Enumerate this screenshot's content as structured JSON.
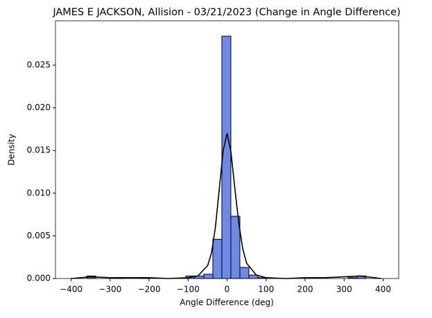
{
  "chart_data": {
    "type": "histogram",
    "title": "JAMES E JACKSON, Allision - 03/21/2023 (Change in Angle Difference)",
    "x_label": "Angle Difference (deg)",
    "y_label": "Density",
    "color": "#7088e6",
    "edge_color": "#000000",
    "bins": [
      -359.9,
      -336.8,
      -313.7,
      -290.6,
      -267.5,
      -244.4,
      -221.3,
      -198.2,
      -175.1,
      -152.0,
      -128.9,
      -105.8,
      -82.7,
      -59.6,
      -36.5,
      -13.4,
      9.7,
      32.8,
      55.9,
      79.0,
      102.1,
      125.2,
      148.3,
      171.4,
      194.5,
      217.6,
      240.7,
      263.8,
      286.9,
      310.0,
      333.1,
      356.2
    ],
    "values": [
      0.0003,
      0,
      0,
      0.0001,
      0,
      0,
      0.0001,
      0,
      0,
      0,
      0,
      0.0003,
      0.0003,
      0.0005,
      0.0046,
      0.0284,
      0.0073,
      0.0013,
      0.0004,
      0.0001,
      0,
      0,
      0,
      0,
      0,
      0,
      0,
      0,
      0,
      0.0001,
      0.0003
    ],
    "kde": {
      "color": "#000000",
      "x": [
        -400,
        -350,
        -300,
        -250,
        -200,
        -150,
        -100,
        -75,
        -50,
        -40,
        -30,
        -20,
        -10,
        0,
        10,
        20,
        30,
        40,
        50,
        75,
        100,
        150,
        200,
        250,
        300,
        340,
        395
      ],
      "y": [
        0,
        0.0002,
        0.0001,
        0.0001,
        0.0001,
        0,
        0.0001,
        0.0003,
        0.0015,
        0.003,
        0.006,
        0.0105,
        0.015,
        0.017,
        0.0148,
        0.0105,
        0.0065,
        0.0035,
        0.0018,
        0.0004,
        0.0001,
        0,
        0.0001,
        0.0001,
        0.0002,
        0.0003,
        0
      ]
    },
    "xlim": [
      -440,
      440
    ],
    "ylim": [
      0,
      0.0302
    ],
    "xticks": [
      {
        "value": -400,
        "label": "−400"
      },
      {
        "value": -300,
        "label": "−300"
      },
      {
        "value": -200,
        "label": "−200"
      },
      {
        "value": -100,
        "label": "−100"
      },
      0,
      100,
      200,
      300,
      400
    ],
    "yticks": [
      {
        "value": 0,
        "label": "0.000"
      },
      {
        "value": 0.005,
        "label": "0.005"
      },
      {
        "value": 0.01,
        "label": "0.010"
      },
      {
        "value": 0.015,
        "label": "0.015"
      },
      {
        "value": 0.02,
        "label": "0.020"
      },
      {
        "value": 0.025,
        "label": "0.025"
      }
    ]
  }
}
